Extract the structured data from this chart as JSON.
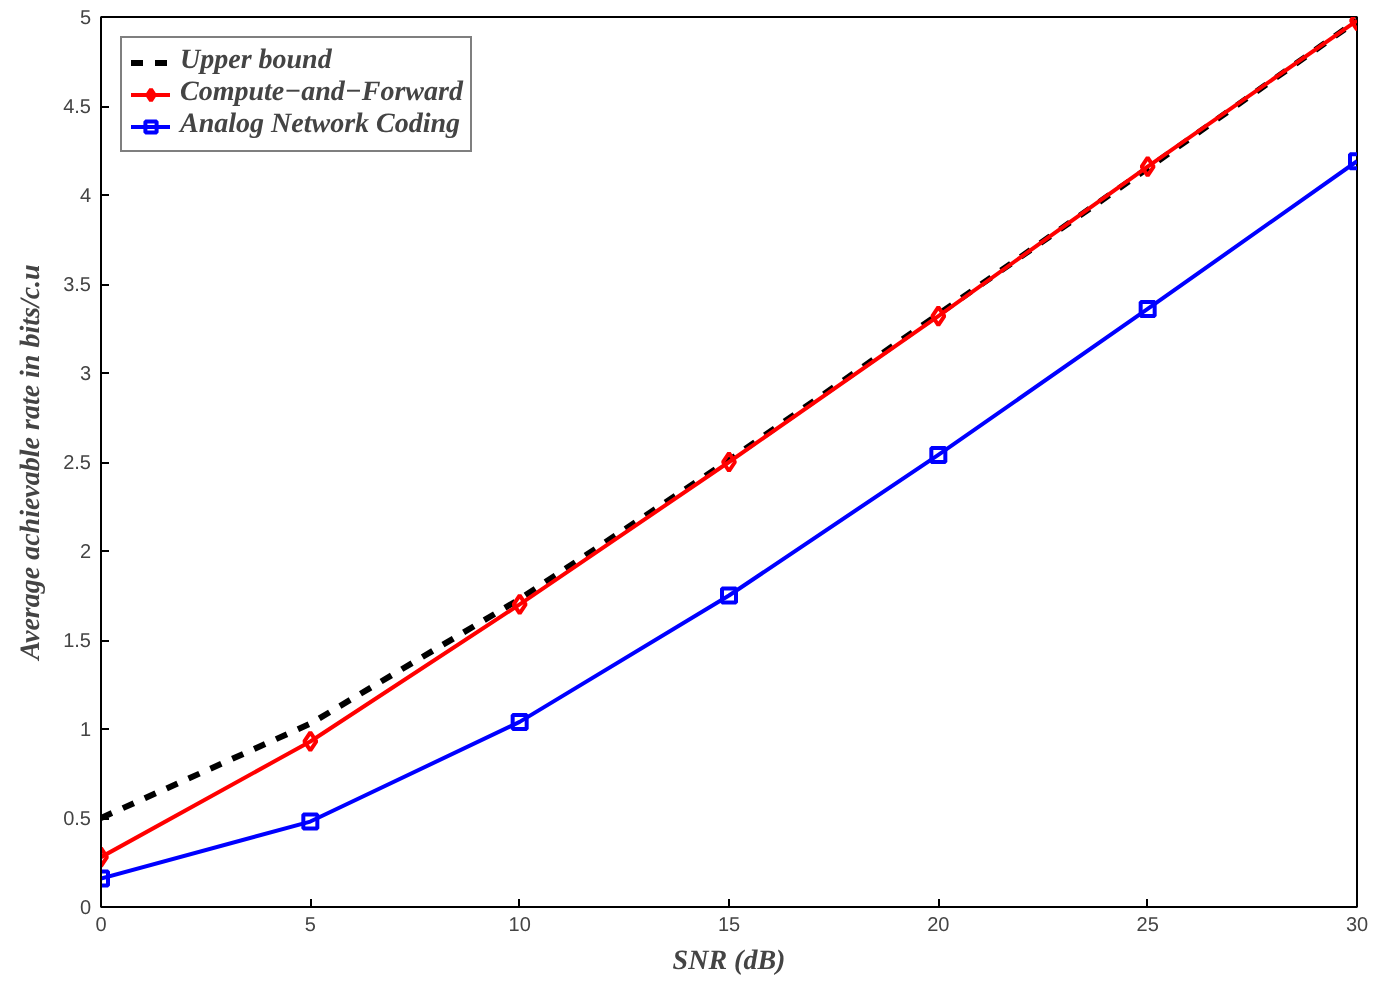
{
  "chart_data": {
    "type": "line",
    "xlabel": "SNR (dB)",
    "ylabel": "Average achievable rate in bits/c.u",
    "x": [
      0,
      5,
      10,
      15,
      20,
      25,
      30
    ],
    "series": [
      {
        "name": "Upper bound",
        "color": "#000000",
        "line_style": "dashed",
        "marker": "none",
        "values": [
          0.5,
          1.03,
          1.73,
          2.51,
          3.33,
          4.15,
          4.98
        ]
      },
      {
        "name": "Compute−and−Forward",
        "color": "#ff0000",
        "line_style": "solid",
        "marker": "diamond",
        "values": [
          0.28,
          0.93,
          1.7,
          2.5,
          3.32,
          4.16,
          4.98
        ]
      },
      {
        "name": "Analog Network Coding",
        "color": "#0000ff",
        "line_style": "solid",
        "marker": "square",
        "values": [
          0.16,
          0.48,
          1.04,
          1.75,
          2.54,
          3.36,
          4.19
        ]
      }
    ],
    "xlim": [
      0,
      30
    ],
    "ylim": [
      0,
      5
    ],
    "xticks": [
      0,
      5,
      10,
      15,
      20,
      25,
      30
    ],
    "yticks": [
      0,
      0.5,
      1,
      1.5,
      2,
      2.5,
      3,
      3.5,
      4,
      4.5,
      5
    ],
    "grid": false,
    "legend": "top left"
  }
}
